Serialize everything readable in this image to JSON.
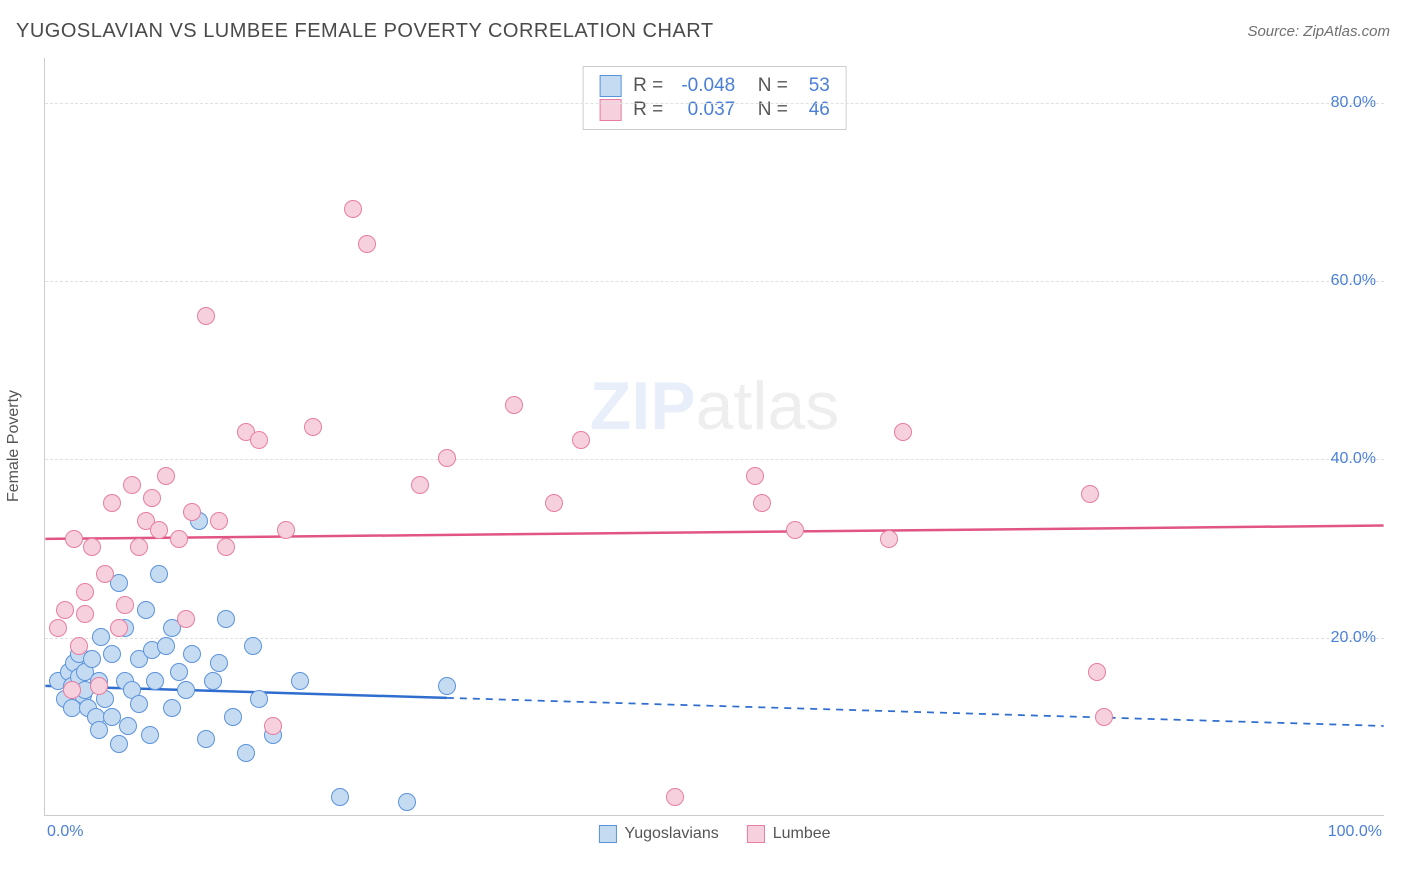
{
  "title": "YUGOSLAVIAN VS LUMBEE FEMALE POVERTY CORRELATION CHART",
  "source": "Source: ZipAtlas.com",
  "ylabel": "Female Poverty",
  "watermark": {
    "zip": "ZIP",
    "atlas": "atlas"
  },
  "xlim": [
    0,
    100
  ],
  "ylim": [
    0,
    85
  ],
  "xticks": [
    {
      "pos": 0,
      "label": "0.0%"
    },
    {
      "pos": 100,
      "label": "100.0%"
    }
  ],
  "yticks": [
    {
      "pos": 20,
      "label": "20.0%"
    },
    {
      "pos": 40,
      "label": "40.0%"
    },
    {
      "pos": 60,
      "label": "60.0%"
    },
    {
      "pos": 80,
      "label": "80.0%"
    }
  ],
  "grid_color": "#e0e0e0",
  "axis_color": "#cccccc",
  "tick_color": "#4a7fd8",
  "marker_radius": 9,
  "marker_stroke_width": 1.5,
  "series": [
    {
      "name": "Yugoslavians",
      "fill": "#c5dbf2",
      "stroke": "#5b93db",
      "R": "-0.048",
      "N": "53",
      "trend": {
        "y_at_x0": 14.5,
        "y_at_x100": 10.0,
        "solid_until_x": 30,
        "color": "#2f6ecf",
        "width": 2.5
      },
      "points": [
        [
          1,
          15
        ],
        [
          1.5,
          13
        ],
        [
          1.8,
          16
        ],
        [
          2,
          12
        ],
        [
          2,
          14.5
        ],
        [
          2.2,
          17
        ],
        [
          2.5,
          15.5
        ],
        [
          2.5,
          18
        ],
        [
          2.8,
          13.5
        ],
        [
          3,
          16
        ],
        [
          3,
          14
        ],
        [
          3.2,
          12
        ],
        [
          3.5,
          17.5
        ],
        [
          3.8,
          11
        ],
        [
          4,
          9.5
        ],
        [
          4,
          15
        ],
        [
          4.2,
          20
        ],
        [
          4.5,
          13
        ],
        [
          5,
          11
        ],
        [
          5,
          18
        ],
        [
          5.5,
          26
        ],
        [
          5.5,
          8
        ],
        [
          6,
          15
        ],
        [
          6,
          21
        ],
        [
          6.2,
          10
        ],
        [
          6.5,
          14
        ],
        [
          7,
          17.5
        ],
        [
          7,
          12.5
        ],
        [
          7.5,
          23
        ],
        [
          7.8,
          9
        ],
        [
          8,
          18.5
        ],
        [
          8.2,
          15
        ],
        [
          8.5,
          27
        ],
        [
          9,
          19
        ],
        [
          9.5,
          12
        ],
        [
          9.5,
          21
        ],
        [
          10,
          16
        ],
        [
          10.5,
          14
        ],
        [
          11,
          18
        ],
        [
          11.5,
          33
        ],
        [
          12,
          8.5
        ],
        [
          12.5,
          15
        ],
        [
          13,
          17
        ],
        [
          13.5,
          22
        ],
        [
          14,
          11
        ],
        [
          15,
          7
        ],
        [
          15.5,
          19
        ],
        [
          16,
          13
        ],
        [
          17,
          9
        ],
        [
          19,
          15
        ],
        [
          22,
          2
        ],
        [
          27,
          1.5
        ],
        [
          30,
          14.5
        ]
      ]
    },
    {
      "name": "Lumbee",
      "fill": "#f6d1dd",
      "stroke": "#e77da0",
      "R": "0.037",
      "N": "46",
      "trend": {
        "y_at_x0": 31.0,
        "y_at_x100": 32.5,
        "solid_until_x": 100,
        "color": "#e15584",
        "width": 2.5
      },
      "points": [
        [
          1,
          21
        ],
        [
          1.5,
          23
        ],
        [
          2,
          14
        ],
        [
          2.2,
          31
        ],
        [
          2.5,
          19
        ],
        [
          3,
          25
        ],
        [
          3,
          22.5
        ],
        [
          3.5,
          30
        ],
        [
          4,
          14.5
        ],
        [
          4.5,
          27
        ],
        [
          5,
          35
        ],
        [
          5.5,
          21
        ],
        [
          6,
          23.5
        ],
        [
          6.5,
          37
        ],
        [
          7,
          30
        ],
        [
          7.5,
          33
        ],
        [
          8,
          35.5
        ],
        [
          8.5,
          32
        ],
        [
          9,
          38
        ],
        [
          10,
          31
        ],
        [
          10.5,
          22
        ],
        [
          11,
          34
        ],
        [
          12,
          56
        ],
        [
          13,
          33
        ],
        [
          13.5,
          30
        ],
        [
          15,
          43
        ],
        [
          16,
          42
        ],
        [
          17,
          10
        ],
        [
          18,
          32
        ],
        [
          20,
          43.5
        ],
        [
          23,
          68
        ],
        [
          24,
          64
        ],
        [
          28,
          37
        ],
        [
          30,
          40
        ],
        [
          35,
          46
        ],
        [
          38,
          35
        ],
        [
          40,
          42
        ],
        [
          47,
          2
        ],
        [
          53,
          38
        ],
        [
          53.5,
          35
        ],
        [
          56,
          32
        ],
        [
          63,
          31
        ],
        [
          64,
          43
        ],
        [
          78,
          36
        ],
        [
          78.5,
          16
        ],
        [
          79,
          11
        ]
      ]
    }
  ],
  "legend_bottom": [
    {
      "label": "Yugoslavians",
      "fill": "#c5dbf2",
      "stroke": "#5b93db"
    },
    {
      "label": "Lumbee",
      "fill": "#f6d1dd",
      "stroke": "#e77da0"
    }
  ]
}
